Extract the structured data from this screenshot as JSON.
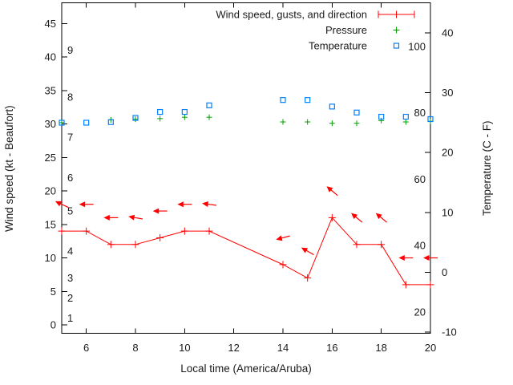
{
  "chart": {
    "background": "#ffffff",
    "text_color": "#1a1a1a",
    "legend": {
      "items": [
        {
          "label": "Wind speed, gusts, and direction",
          "key": "errorbar",
          "color": "#ff0000"
        },
        {
          "label": "Pressure",
          "key": "plus",
          "color": "#00a000"
        },
        {
          "label": "Temperature",
          "key": "square",
          "color": "#0080ff"
        }
      ]
    },
    "axes": {
      "x": {
        "title": "Local time (America/Aruba)",
        "tick_labels": [
          "6",
          "8",
          "10",
          "12",
          "14",
          "16",
          "18",
          "20"
        ],
        "tick_values": [
          6,
          8,
          10,
          12,
          14,
          16,
          18,
          20
        ],
        "range": [
          5,
          20
        ]
      },
      "y_left": {
        "title": "Wind speed (kt - Beaufort)",
        "tick_labels": [
          "0",
          "5",
          "10",
          "15",
          "20",
          "25",
          "30",
          "35",
          "40",
          "45"
        ],
        "tick_values": [
          0,
          5,
          10,
          15,
          20,
          25,
          30,
          35,
          40,
          45
        ]
      },
      "y_left_inner_beaufort": {
        "labels": [
          "1",
          "2",
          "3",
          "4",
          "5",
          "6",
          "7",
          "8",
          "9"
        ],
        "at_kt": [
          1,
          4,
          7,
          11,
          17,
          22,
          28,
          34,
          41
        ]
      },
      "y_right": {
        "title": "Temperature (C - F)",
        "tick_labels": [
          "40",
          "30",
          "20",
          "10",
          "0",
          "-10"
        ],
        "tick_values": [
          40,
          30,
          20,
          10,
          0,
          -10
        ]
      },
      "y_right_inner_fahrenheit": {
        "labels": [
          "100",
          "80",
          "60",
          "40",
          "20"
        ],
        "at_f": [
          100,
          80,
          60,
          40,
          20
        ]
      }
    },
    "chart_data": {
      "type": "line",
      "title": "Wind speed, gusts, and direction / Pressure / Temperature",
      "x_hours": [
        5,
        6,
        7,
        8,
        9,
        10,
        11,
        14,
        15,
        16,
        17,
        18,
        19,
        20
      ],
      "series": [
        {
          "name": "wind_speed_kt",
          "color": "#ff0000",
          "marker": "plus-line",
          "values": [
            14,
            14,
            12,
            12,
            13,
            14,
            14,
            9,
            7,
            16,
            12,
            12,
            6,
            6
          ]
        },
        {
          "name": "wind_gust_kt_arrow_position",
          "color": "#ff0000",
          "marker": "arrow",
          "values": [
            18,
            18,
            16,
            16,
            17,
            18,
            18,
            13,
            11,
            20,
            16,
            16,
            10,
            10
          ]
        },
        {
          "name": "wind_arrow_tilt_deg_clockwise_from_pointing_left",
          "values": [
            25,
            0,
            0,
            10,
            0,
            0,
            8,
            -15,
            30,
            40,
            40,
            40,
            0,
            0
          ]
        },
        {
          "name": "pressure_unlabeled_scale_in_left_axis_units",
          "color": "#00a000",
          "marker": "plus",
          "values": [
            30.2,
            null,
            30.6,
            30.7,
            30.8,
            31.0,
            31.0,
            30.3,
            30.3,
            30.1,
            30.1,
            30.5,
            30.3,
            30.4
          ]
        },
        {
          "name": "temperature_c",
          "color": "#0080ff",
          "marker": "square",
          "values": [
            25.0,
            25.0,
            25.1,
            25.8,
            26.8,
            26.8,
            27.9,
            28.8,
            28.8,
            27.7,
            26.7,
            26.0,
            26.0,
            25.6
          ]
        }
      ],
      "grid": false,
      "legend_position": "top-right-inside"
    }
  }
}
